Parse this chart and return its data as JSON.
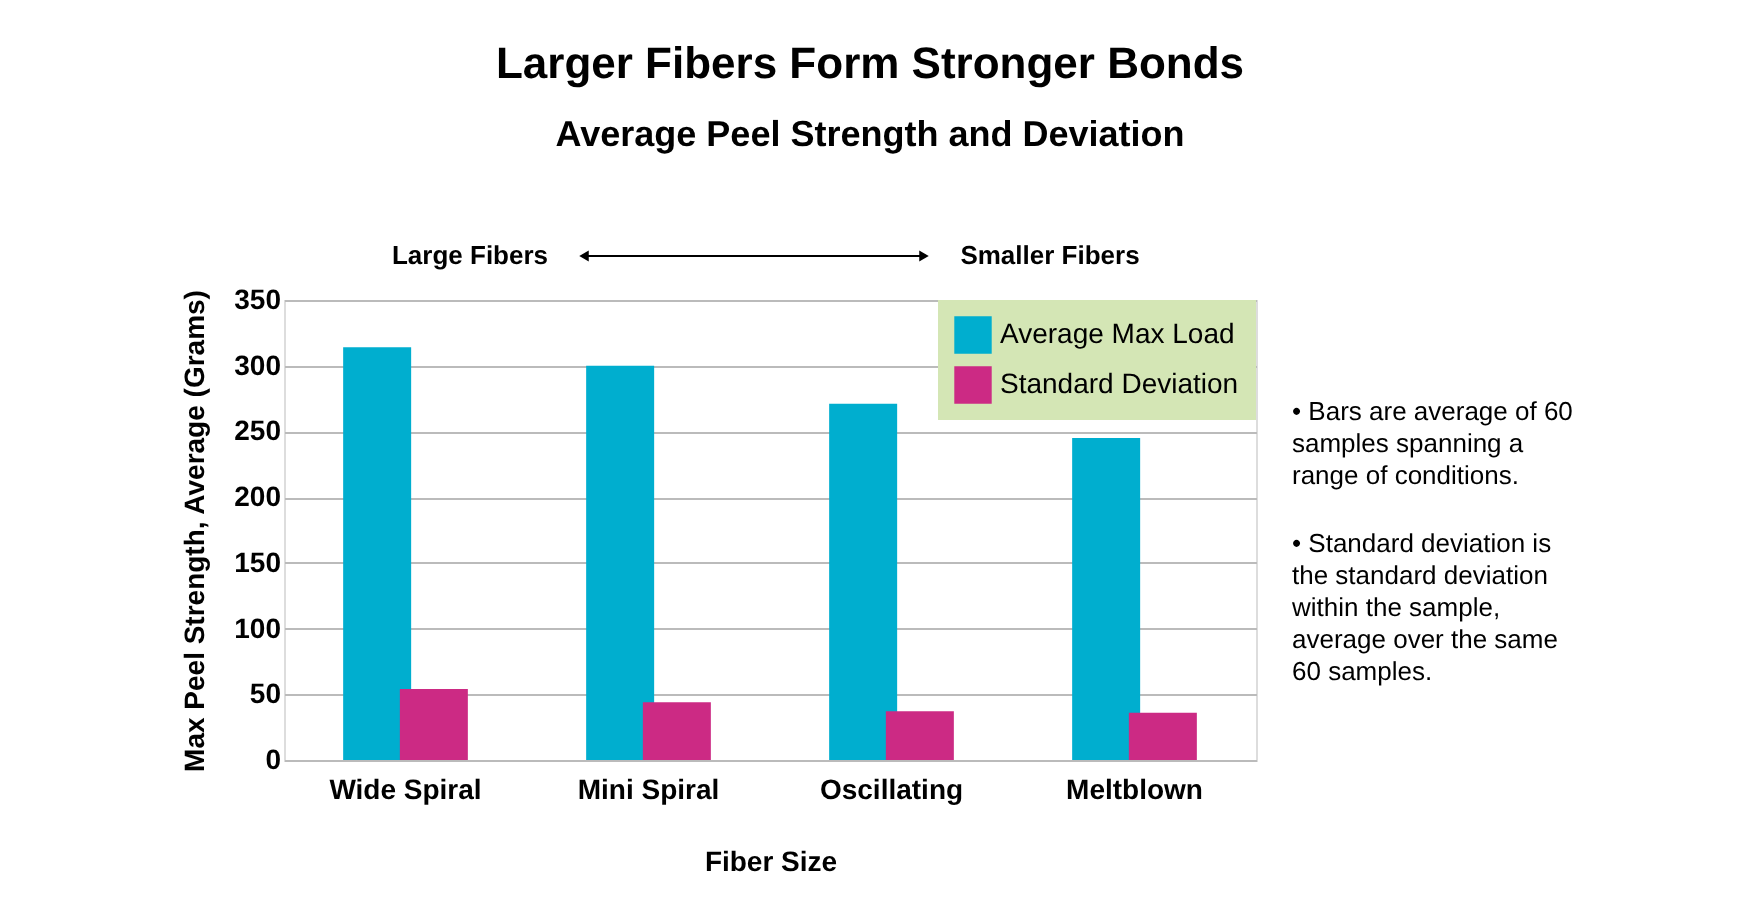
{
  "chart_data": {
    "type": "bar",
    "title": "Larger Fibers Form Stronger Bonds",
    "subtitle": "Average Peel Strength and Deviation",
    "xlabel": "Fiber Size",
    "ylabel": "Max Peel Strength, Average (Grams)",
    "categories": [
      "Wide Spiral",
      "Mini Spiral",
      "Oscillating",
      "Meltblown"
    ],
    "series": [
      {
        "name": "Average Max Load",
        "color": "#00aecf",
        "values": [
          314,
          300,
          271,
          245
        ]
      },
      {
        "name": "Standard Deviation",
        "color": "#cc2a84",
        "values": [
          54,
          44,
          37,
          36
        ]
      }
    ],
    "ylim": [
      0,
      350
    ],
    "yticks": [
      0,
      50,
      100,
      150,
      200,
      250,
      300,
      350
    ],
    "grid": "y",
    "legend": "top right",
    "annotations": [
      "Large Fibers",
      "Smaller Fibers",
      "• Bars are average of 60 samples spanning a range of conditions.",
      "• Standard deviation is the standard deviation within the sample, average over the same 60 samples."
    ]
  }
}
